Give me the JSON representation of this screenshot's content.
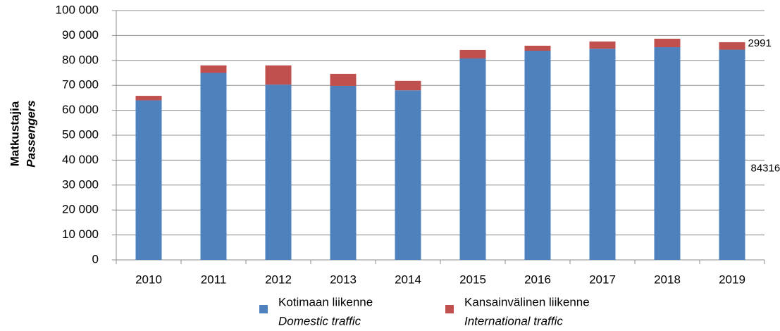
{
  "chart_data": {
    "type": "stacked_bar",
    "ylabel": "Matkustajia",
    "ylabel_en": "Passengers",
    "categories": [
      "2010",
      "2011",
      "2012",
      "2013",
      "2014",
      "2015",
      "2016",
      "2017",
      "2018",
      "2019"
    ],
    "series": [
      {
        "name": "Kotimaan liikenne",
        "name_en": "Domestic traffic",
        "color": "#4f81bd",
        "values": [
          64000,
          75000,
          70300,
          69800,
          68000,
          80800,
          83900,
          84700,
          85300,
          84316
        ]
      },
      {
        "name": "Kansainvälinen liikenne",
        "name_en": "International traffic",
        "color": "#c0504d",
        "values": [
          1800,
          3000,
          7700,
          4800,
          3800,
          3400,
          2000,
          2900,
          3400,
          2991
        ]
      }
    ],
    "ylim": [
      0,
      100000
    ],
    "yticks": [
      0,
      {
        "value": 10000,
        "label": "10 000"
      },
      {
        "value": 20000,
        "label": "20 000"
      },
      {
        "value": 30000,
        "label": "30 000"
      },
      {
        "value": 40000,
        "label": "40 000"
      },
      {
        "value": 50000,
        "label": "50 000"
      },
      {
        "value": 60000,
        "label": "60 000"
      },
      {
        "value": 70000,
        "label": "70 000"
      },
      {
        "value": 80000,
        "label": "80 000"
      },
      {
        "value": 90000,
        "label": "90 000"
      },
      {
        "value": 100000,
        "label": "100 000"
      }
    ],
    "grid": true,
    "legend": "bottom"
  }
}
